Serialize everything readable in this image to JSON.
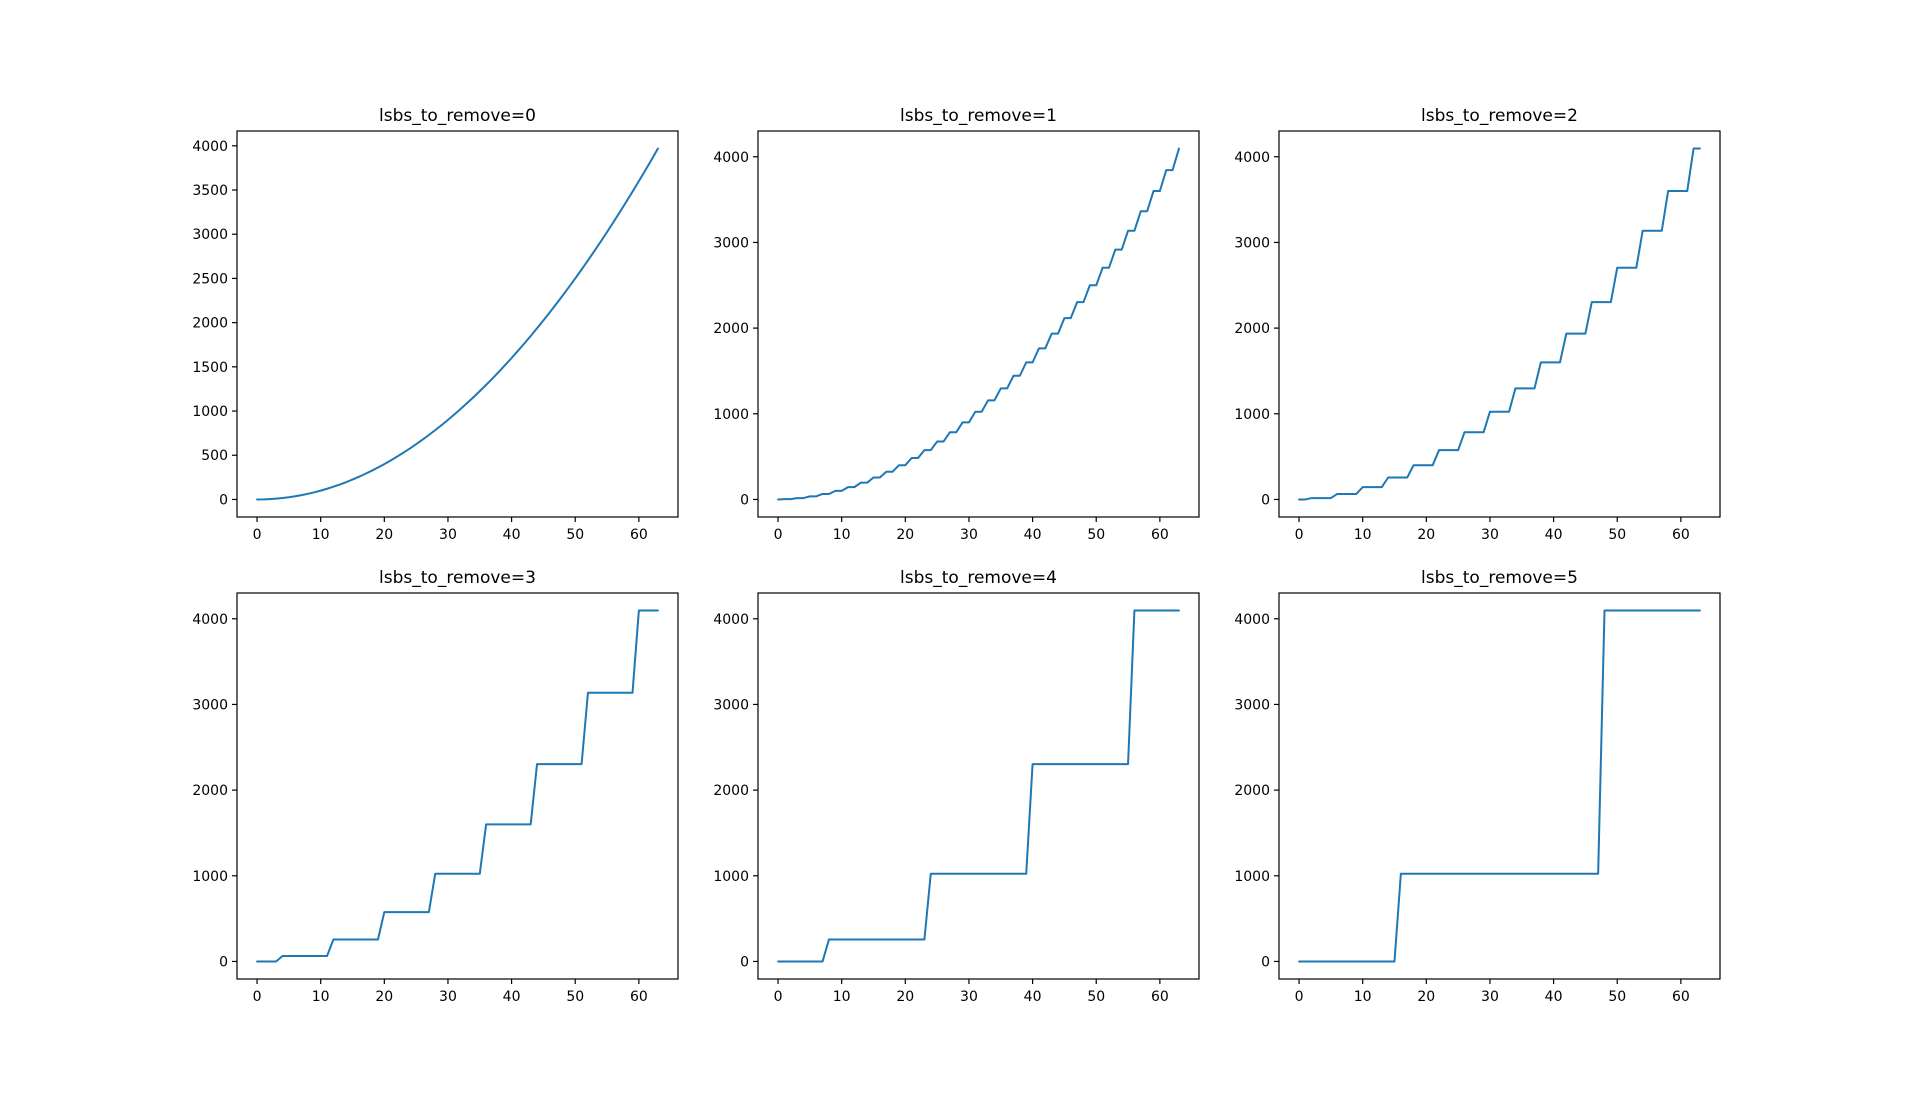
{
  "figure": {
    "background": "#ffffff",
    "line_color": "#1f77b4",
    "frame_color": "#000000",
    "text_color": "#000000",
    "grid": false,
    "legend": null,
    "shared_x": [
      0,
      1,
      2,
      3,
      4,
      5,
      6,
      7,
      8,
      9,
      10,
      11,
      12,
      13,
      14,
      15,
      16,
      17,
      18,
      19,
      20,
      21,
      22,
      23,
      24,
      25,
      26,
      27,
      28,
      29,
      30,
      31,
      32,
      33,
      34,
      35,
      36,
      37,
      38,
      39,
      40,
      41,
      42,
      43,
      44,
      45,
      46,
      47,
      48,
      49,
      50,
      51,
      52,
      53,
      54,
      55,
      56,
      57,
      58,
      59,
      60,
      61,
      62,
      63
    ]
  },
  "chart_data": [
    {
      "type": "line",
      "title": "lsbs_to_remove=0",
      "xlabel": "",
      "ylabel": "",
      "xticks": [
        0,
        10,
        20,
        30,
        40,
        50,
        60
      ],
      "yticks": [
        0,
        500,
        1000,
        1500,
        2000,
        2500,
        3000,
        3500,
        4000
      ],
      "xlim": [
        -3.15,
        66.15
      ],
      "ylim": [
        -198.45,
        4167.45
      ],
      "values": [
        0,
        1,
        4,
        9,
        16,
        25,
        36,
        49,
        64,
        81,
        100,
        121,
        144,
        169,
        196,
        225,
        256,
        289,
        324,
        361,
        400,
        441,
        484,
        529,
        576,
        625,
        676,
        729,
        784,
        841,
        900,
        961,
        1024,
        1089,
        1156,
        1225,
        1296,
        1369,
        1444,
        1521,
        1600,
        1681,
        1764,
        1849,
        1936,
        2025,
        2116,
        2209,
        2304,
        2401,
        2500,
        2601,
        2704,
        2809,
        2916,
        3025,
        3136,
        3249,
        3364,
        3481,
        3600,
        3721,
        3844,
        3969
      ]
    },
    {
      "type": "line",
      "title": "lsbs_to_remove=1",
      "xlabel": "",
      "ylabel": "",
      "xticks": [
        0,
        10,
        20,
        30,
        40,
        50,
        60
      ],
      "yticks": [
        0,
        1000,
        2000,
        3000,
        4000
      ],
      "xlim": [
        -3.15,
        66.15
      ],
      "ylim": [
        -204.8,
        4300.8
      ],
      "values": [
        0,
        4,
        4,
        16,
        16,
        36,
        36,
        64,
        64,
        100,
        100,
        144,
        144,
        196,
        196,
        256,
        256,
        324,
        324,
        400,
        400,
        484,
        484,
        576,
        576,
        676,
        676,
        784,
        784,
        900,
        900,
        1024,
        1024,
        1156,
        1156,
        1296,
        1296,
        1444,
        1444,
        1600,
        1600,
        1764,
        1764,
        1936,
        1936,
        2116,
        2116,
        2304,
        2304,
        2500,
        2500,
        2704,
        2704,
        2916,
        2916,
        3136,
        3136,
        3364,
        3364,
        3600,
        3600,
        3844,
        3844,
        4096
      ]
    },
    {
      "type": "line",
      "title": "lsbs_to_remove=2",
      "xlabel": "",
      "ylabel": "",
      "xticks": [
        0,
        10,
        20,
        30,
        40,
        50,
        60
      ],
      "yticks": [
        0,
        1000,
        2000,
        3000,
        4000
      ],
      "xlim": [
        -3.15,
        66.15
      ],
      "ylim": [
        -204.8,
        4300.8
      ],
      "values": [
        0,
        0,
        16,
        16,
        16,
        16,
        64,
        64,
        64,
        64,
        144,
        144,
        144,
        144,
        256,
        256,
        256,
        256,
        400,
        400,
        400,
        400,
        576,
        576,
        576,
        576,
        784,
        784,
        784,
        784,
        1024,
        1024,
        1024,
        1024,
        1296,
        1296,
        1296,
        1296,
        1600,
        1600,
        1600,
        1600,
        1936,
        1936,
        1936,
        1936,
        2304,
        2304,
        2304,
        2304,
        2704,
        2704,
        2704,
        2704,
        3136,
        3136,
        3136,
        3136,
        3600,
        3600,
        3600,
        3600,
        4096,
        4096
      ]
    },
    {
      "type": "line",
      "title": "lsbs_to_remove=3",
      "xlabel": "",
      "ylabel": "",
      "xticks": [
        0,
        10,
        20,
        30,
        40,
        50,
        60
      ],
      "yticks": [
        0,
        1000,
        2000,
        3000,
        4000
      ],
      "xlim": [
        -3.15,
        66.15
      ],
      "ylim": [
        -204.8,
        4300.8
      ],
      "values": [
        0,
        0,
        0,
        0,
        64,
        64,
        64,
        64,
        64,
        64,
        64,
        64,
        256,
        256,
        256,
        256,
        256,
        256,
        256,
        256,
        576,
        576,
        576,
        576,
        576,
        576,
        576,
        576,
        1024,
        1024,
        1024,
        1024,
        1024,
        1024,
        1024,
        1024,
        1600,
        1600,
        1600,
        1600,
        1600,
        1600,
        1600,
        1600,
        2304,
        2304,
        2304,
        2304,
        2304,
        2304,
        2304,
        2304,
        3136,
        3136,
        3136,
        3136,
        3136,
        3136,
        3136,
        3136,
        4096,
        4096,
        4096,
        4096
      ]
    },
    {
      "type": "line",
      "title": "lsbs_to_remove=4",
      "xlabel": "",
      "ylabel": "",
      "xticks": [
        0,
        10,
        20,
        30,
        40,
        50,
        60
      ],
      "yticks": [
        0,
        1000,
        2000,
        3000,
        4000
      ],
      "xlim": [
        -3.15,
        66.15
      ],
      "ylim": [
        -204.8,
        4300.8
      ],
      "values": [
        0,
        0,
        0,
        0,
        0,
        0,
        0,
        0,
        256,
        256,
        256,
        256,
        256,
        256,
        256,
        256,
        256,
        256,
        256,
        256,
        256,
        256,
        256,
        256,
        1024,
        1024,
        1024,
        1024,
        1024,
        1024,
        1024,
        1024,
        1024,
        1024,
        1024,
        1024,
        1024,
        1024,
        1024,
        1024,
        2304,
        2304,
        2304,
        2304,
        2304,
        2304,
        2304,
        2304,
        2304,
        2304,
        2304,
        2304,
        2304,
        2304,
        2304,
        2304,
        4096,
        4096,
        4096,
        4096,
        4096,
        4096,
        4096,
        4096
      ]
    },
    {
      "type": "line",
      "title": "lsbs_to_remove=5",
      "xlabel": "",
      "ylabel": "",
      "xticks": [
        0,
        10,
        20,
        30,
        40,
        50,
        60
      ],
      "yticks": [
        0,
        1000,
        2000,
        3000,
        4000
      ],
      "xlim": [
        -3.15,
        66.15
      ],
      "ylim": [
        -204.8,
        4300.8
      ],
      "values": [
        0,
        0,
        0,
        0,
        0,
        0,
        0,
        0,
        0,
        0,
        0,
        0,
        0,
        0,
        0,
        0,
        1024,
        1024,
        1024,
        1024,
        1024,
        1024,
        1024,
        1024,
        1024,
        1024,
        1024,
        1024,
        1024,
        1024,
        1024,
        1024,
        1024,
        1024,
        1024,
        1024,
        1024,
        1024,
        1024,
        1024,
        1024,
        1024,
        1024,
        1024,
        1024,
        1024,
        1024,
        1024,
        4096,
        4096,
        4096,
        4096,
        4096,
        4096,
        4096,
        4096,
        4096,
        4096,
        4096,
        4096,
        4096,
        4096,
        4096,
        4096
      ]
    }
  ]
}
